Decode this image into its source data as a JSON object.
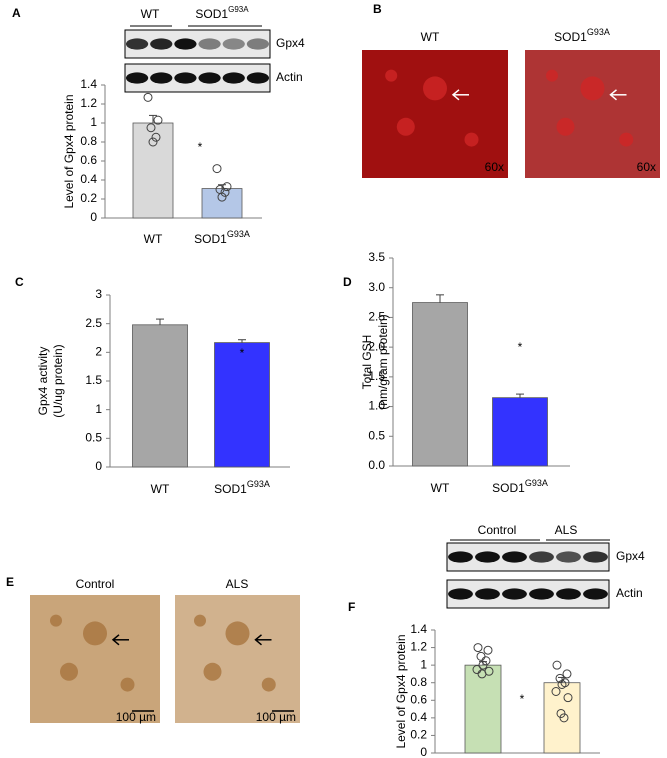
{
  "chart_data": [
    {
      "type": "bar",
      "panel": "A",
      "ylabel": "Level of Gpx4 protein",
      "categories": [
        "WT",
        "SOD1"
      ],
      "category_superscripts": [
        null,
        "G93A"
      ],
      "values": [
        1.0,
        0.31
      ],
      "errors": [
        0.08,
        0.04
      ],
      "colors": [
        "#d9d9d9",
        "#b4c7e7"
      ],
      "points": [
        [
          1.27,
          1.03,
          0.95,
          0.85,
          0.8
        ],
        [
          0.52,
          0.33,
          0.3,
          0.27,
          0.22
        ]
      ],
      "ylim": [
        0,
        1.4
      ],
      "yticks": [
        0,
        0.2,
        0.4,
        0.6,
        0.8,
        1,
        1.2,
        1.4
      ],
      "annotations": [
        "*"
      ],
      "blot": {
        "groups": [
          "WT",
          "SOD1"
        ],
        "group_superscripts": [
          null,
          "G93A"
        ],
        "bands": [
          "Gpx4",
          "Actin"
        ]
      }
    },
    {
      "type": "bar",
      "panel": "C",
      "ylabel": "Gpx4 activity",
      "ylabel_unit": "(U/ug protein)",
      "categories": [
        "WT",
        "SOD1"
      ],
      "category_superscripts": [
        null,
        "G93A"
      ],
      "values": [
        2.48,
        2.17
      ],
      "errors": [
        0.1,
        0.05
      ],
      "colors": [
        "#a6a6a6",
        "#3333ff"
      ],
      "ylim": [
        0,
        3
      ],
      "yticks": [
        0,
        0.5,
        1,
        1.5,
        2,
        2.5,
        3
      ],
      "annotations": [
        "*"
      ]
    },
    {
      "type": "bar",
      "panel": "D",
      "ylabel": "Total GSH",
      "ylabel_unit": "(nm/gram protein)",
      "categories": [
        "WT",
        "SOD1"
      ],
      "category_superscripts": [
        null,
        "G93A"
      ],
      "values": [
        2.75,
        1.15
      ],
      "errors": [
        0.13,
        0.06
      ],
      "colors": [
        "#a6a6a6",
        "#3333ff"
      ],
      "ylim": [
        0,
        3.5
      ],
      "yticks": [
        {
          "value": 0,
          "label": "0.0"
        },
        {
          "value": 0.5,
          "label": "0.5"
        },
        {
          "value": 1,
          "label": "1.0"
        },
        {
          "value": 1.5,
          "label": "1.5"
        },
        {
          "value": 2,
          "label": "2.0"
        },
        {
          "value": 2.5,
          "label": "2.5"
        },
        {
          "value": 3,
          "label": "3.0"
        },
        {
          "value": 3.5,
          "label": "3.5"
        }
      ],
      "annotations": [
        "*"
      ]
    },
    {
      "type": "bar",
      "panel": "F",
      "ylabel": "Level of Gpx4 protein",
      "categories": [
        null,
        null
      ],
      "values": [
        1.0,
        0.8
      ],
      "errors": [
        0.04,
        0.06
      ],
      "colors": [
        "#c6e0b4",
        "#fff2cc"
      ],
      "points": [
        [
          1.2,
          1.17,
          1.1,
          1.05,
          1.0,
          0.95,
          0.93,
          0.9
        ],
        [
          1.0,
          0.9,
          0.85,
          0.8,
          0.78,
          0.7,
          0.63,
          0.45,
          0.4
        ]
      ],
      "ylim": [
        0,
        1.4
      ],
      "yticks": [
        0,
        0.2,
        0.4,
        0.6,
        0.8,
        1,
        1.2,
        1.4
      ],
      "annotations": [
        "*"
      ],
      "blot": {
        "groups": [
          "Control",
          "ALS"
        ],
        "bands": [
          "Gpx4",
          "Actin"
        ]
      }
    }
  ],
  "images": [
    {
      "panel": "B",
      "items": [
        {
          "title": "WT",
          "magnification": "60x"
        },
        {
          "title": "SOD1",
          "title_superscript": "G93A",
          "magnification": "60x"
        }
      ]
    },
    {
      "panel": "E",
      "items": [
        {
          "title": "Control",
          "scale_bar": "100 µm"
        },
        {
          "title": "ALS",
          "scale_bar": "100 µm"
        }
      ]
    }
  ]
}
